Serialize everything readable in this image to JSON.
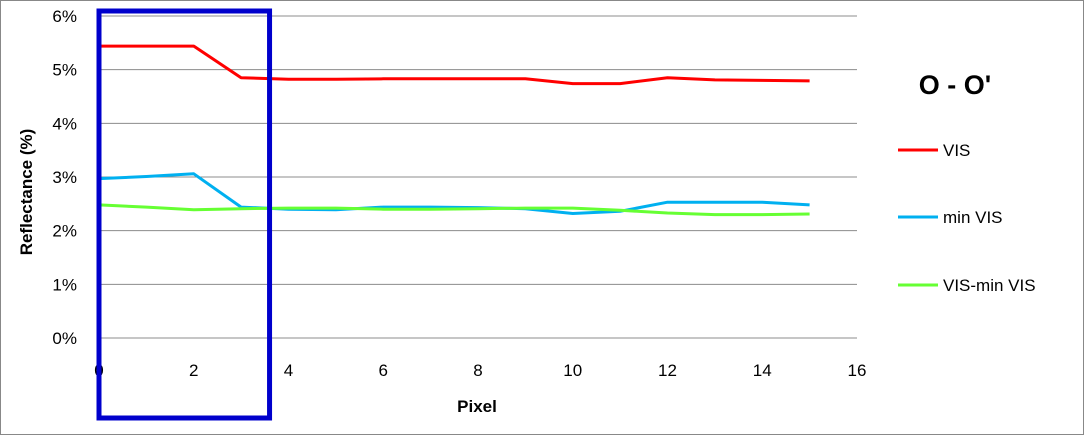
{
  "chart_data": {
    "type": "line",
    "title": "O - O'",
    "xlabel": "Pixel",
    "ylabel": "Reflectance (%)",
    "xlim": [
      0,
      16
    ],
    "ylim": [
      0,
      0.06
    ],
    "x_ticks": [
      "0",
      "2",
      "4",
      "6",
      "8",
      "10",
      "12",
      "14",
      "16"
    ],
    "y_ticks": [
      "0%",
      "1%",
      "2%",
      "3%",
      "4%",
      "5%",
      "6%"
    ],
    "grid": "horizontal",
    "legend_position": "right",
    "x": [
      0,
      1,
      2,
      3,
      4,
      5,
      6,
      7,
      8,
      9,
      10,
      11,
      12,
      13,
      14,
      15
    ],
    "series": [
      {
        "name": "VIS",
        "color": "#ff0000",
        "values": [
          0.0544,
          0.0544,
          0.0544,
          0.0485,
          0.0482,
          0.0482,
          0.0483,
          0.0483,
          0.0483,
          0.0483,
          0.0474,
          0.0474,
          0.0485,
          0.0481,
          0.048,
          0.0479
        ]
      },
      {
        "name": "min VIS",
        "color": "#00b0f0",
        "values": [
          0.0297,
          0.0301,
          0.0306,
          0.0244,
          0.024,
          0.0239,
          0.0244,
          0.0244,
          0.0243,
          0.0241,
          0.0232,
          0.0236,
          0.0253,
          0.0253,
          0.0253,
          0.0248
        ]
      },
      {
        "name": "VIS-min VIS",
        "color": "#66ff33",
        "values": [
          0.0248,
          0.0244,
          0.0239,
          0.0241,
          0.0242,
          0.0242,
          0.024,
          0.024,
          0.0241,
          0.0242,
          0.0242,
          0.0238,
          0.0233,
          0.023,
          0.023,
          0.0231
        ]
      }
    ],
    "highlight_box": {
      "color": "#0000cc",
      "x_range": [
        0,
        3.6
      ]
    }
  }
}
